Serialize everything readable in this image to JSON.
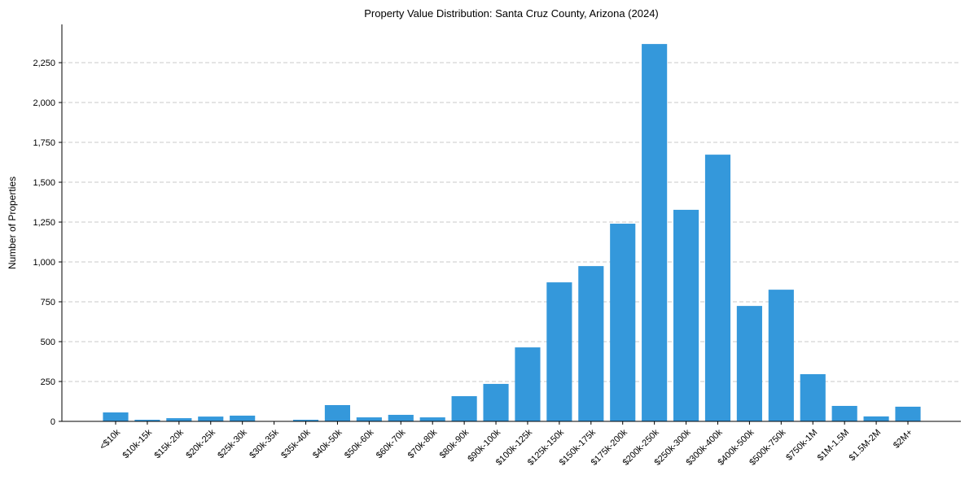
{
  "chart_data": {
    "type": "bar",
    "title": "Property Value Distribution: Santa Cruz County, Arizona (2024)",
    "xlabel": "",
    "ylabel": "Number of Properties",
    "categories": [
      "<$10k",
      "$10k-15k",
      "$15k-20k",
      "$20k-25k",
      "$25k-30k",
      "$30k-35k",
      "$35k-40k",
      "$40k-50k",
      "$50k-60k",
      "$60k-70k",
      "$70k-80k",
      "$80k-90k",
      "$90k-100k",
      "$100k-125k",
      "$125k-150k",
      "$150k-175k",
      "$175k-200k",
      "$200k-250k",
      "$250k-300k",
      "$300k-400k",
      "$400k-500k",
      "$500k-750k",
      "$750k-1M",
      "$1M-1.5M",
      "$1.5M-2M",
      "$2M+"
    ],
    "values": [
      56,
      10,
      20,
      30,
      36,
      0,
      10,
      102,
      25,
      41,
      25,
      158,
      235,
      464,
      872,
      974,
      1240,
      2367,
      1327,
      1673,
      724,
      826,
      296,
      97,
      31,
      92
    ],
    "ylim": [
      0,
      2490
    ],
    "yticks": [
      0,
      250,
      500,
      750,
      1000,
      1250,
      1500,
      1750,
      2000,
      2250
    ],
    "ytick_labels": [
      "0",
      "250",
      "500",
      "750",
      "1,000",
      "1,250",
      "1,500",
      "1,750",
      "2,000",
      "2,250"
    ],
    "grid": "y-dashed",
    "bar_color": "#3498db"
  }
}
